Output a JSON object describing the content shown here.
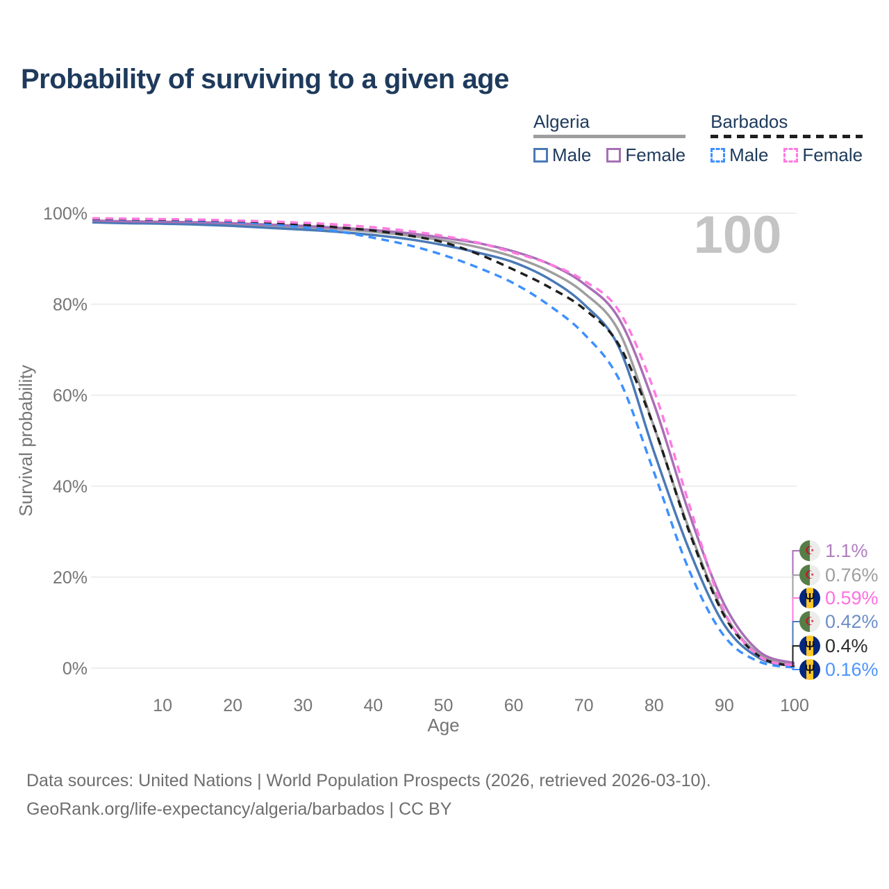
{
  "title": "Probability of surviving to a given age",
  "legend": {
    "groups": [
      {
        "id": "algeria",
        "title": "Algeria",
        "line_style": "solid",
        "line_color": "#9E9E9E",
        "items": [
          {
            "id": "algeria-male",
            "label": "Male",
            "swatch_color": "#4A79B6",
            "swatch_style": "solid"
          },
          {
            "id": "algeria-female",
            "label": "Female",
            "swatch_color": "#A76FB5",
            "swatch_style": "solid"
          }
        ]
      },
      {
        "id": "barbados",
        "title": "Barbados",
        "line_style": "dashed",
        "line_color": "#1F1F1F",
        "items": [
          {
            "id": "barbados-male",
            "label": "Male",
            "swatch_color": "#3D90FF",
            "swatch_style": "dashed"
          },
          {
            "id": "barbados-female",
            "label": "Female",
            "swatch_color": "#FF7BDF",
            "swatch_style": "dashed"
          }
        ]
      }
    ]
  },
  "chart_data": {
    "type": "line",
    "title": "Probability of surviving to a given age",
    "xlabel": "Age",
    "ylabel": "Survival probability",
    "xlim": [
      0,
      100
    ],
    "ylim": [
      0,
      100
    ],
    "x_ticks": [
      10,
      20,
      30,
      40,
      50,
      60,
      70,
      80,
      90,
      100
    ],
    "y_ticks": [
      0,
      20,
      40,
      60,
      80,
      100
    ],
    "y_tick_suffix": "%",
    "grid": "horizontal",
    "age_indicator": "100",
    "x": [
      0,
      5,
      10,
      15,
      20,
      25,
      30,
      35,
      40,
      45,
      50,
      55,
      60,
      65,
      70,
      75,
      80,
      85,
      90,
      95,
      100
    ],
    "series": [
      {
        "id": "algeria-avg",
        "name": "Algeria",
        "country": "Algeria",
        "sex": "both",
        "color": "#9E9E9E",
        "dash": "solid",
        "values": [
          98.2,
          98.0,
          97.9,
          97.8,
          97.6,
          97.3,
          96.9,
          96.5,
          95.9,
          95.1,
          94.0,
          92.5,
          90.4,
          87.3,
          82.5,
          74.0,
          53.0,
          30.5,
          12.0,
          3.0,
          0.76
        ]
      },
      {
        "id": "algeria-male",
        "name": "Algeria Male",
        "country": "Algeria",
        "sex": "male",
        "color": "#4A79B6",
        "dash": "solid",
        "values": [
          98.0,
          97.8,
          97.7,
          97.5,
          97.2,
          96.8,
          96.4,
          95.9,
          95.2,
          94.3,
          93.0,
          91.3,
          89.2,
          85.6,
          80.0,
          70.5,
          47.5,
          26.0,
          9.5,
          2.2,
          0.42
        ]
      },
      {
        "id": "algeria-female",
        "name": "Algeria Female",
        "country": "Algeria",
        "sex": "female",
        "color": "#A76FB5",
        "dash": "solid",
        "values": [
          98.4,
          98.2,
          98.1,
          98.0,
          97.8,
          97.5,
          97.2,
          96.8,
          96.3,
          95.6,
          94.6,
          93.4,
          91.6,
          88.9,
          84.5,
          76.8,
          58.0,
          34.0,
          14.0,
          3.6,
          1.1
        ]
      },
      {
        "id": "barbados-male",
        "name": "Barbados Male",
        "country": "Barbados",
        "sex": "male",
        "color": "#3D90FF",
        "dash": "dashed",
        "values": [
          98.7,
          98.6,
          98.5,
          98.3,
          98.1,
          97.6,
          96.9,
          96.0,
          94.6,
          93.0,
          90.8,
          88.0,
          84.6,
          79.8,
          73.5,
          63.5,
          43.0,
          21.5,
          7.0,
          1.4,
          0.16
        ]
      },
      {
        "id": "barbados-avg",
        "name": "Barbados",
        "country": "Barbados",
        "sex": "both",
        "color": "#1F1F1F",
        "dash": "dashed",
        "values": [
          98.8,
          98.7,
          98.6,
          98.5,
          98.3,
          98.0,
          97.5,
          96.9,
          96.2,
          95.1,
          93.6,
          91.0,
          87.6,
          83.8,
          79.0,
          71.0,
          53.0,
          30.0,
          11.5,
          2.6,
          0.4
        ]
      },
      {
        "id": "barbados-female",
        "name": "Barbados Female",
        "country": "Barbados",
        "sex": "female",
        "color": "#FF7BDF",
        "dash": "dashed",
        "values": [
          98.9,
          98.8,
          98.7,
          98.6,
          98.4,
          98.2,
          97.9,
          97.5,
          96.9,
          96.1,
          95.0,
          93.5,
          91.3,
          88.9,
          85.2,
          78.5,
          61.0,
          36.0,
          12.5,
          2.6,
          0.59
        ]
      }
    ],
    "end_labels": [
      {
        "series": "algeria-female",
        "flag": "algeria",
        "flag_icon": "algeria-flag-icon",
        "glyph": "☪",
        "text": "1.1%",
        "color": "#B07EC0"
      },
      {
        "series": "algeria-avg",
        "flag": "algeria",
        "flag_icon": "algeria-flag-icon",
        "glyph": "☪",
        "text": "0.76%",
        "color": "#9E9E9E"
      },
      {
        "series": "barbados-female",
        "flag": "barbados",
        "flag_icon": "barbados-flag-icon",
        "glyph": "Ψ",
        "text": "0.59%",
        "color": "#FF6FDF"
      },
      {
        "series": "algeria-male",
        "flag": "algeria",
        "flag_icon": "algeria-flag-icon",
        "glyph": "☪",
        "text": "0.42%",
        "color": "#6C8EC9"
      },
      {
        "series": "barbados-avg",
        "flag": "barbados",
        "flag_icon": "barbados-flag-icon",
        "glyph": "Ψ",
        "text": "0.4%",
        "color": "#2B2B2B"
      },
      {
        "series": "barbados-male",
        "flag": "barbados",
        "flag_icon": "barbados-flag-icon",
        "glyph": "Ψ",
        "text": "0.16%",
        "color": "#4D94FF"
      }
    ]
  },
  "footer": {
    "line1": "Data sources: United Nations | World Population Prospects (2026, retrieved 2026-03-10).",
    "line2": "GeoRank.org/life-expectancy/algeria/barbados | CC BY"
  }
}
